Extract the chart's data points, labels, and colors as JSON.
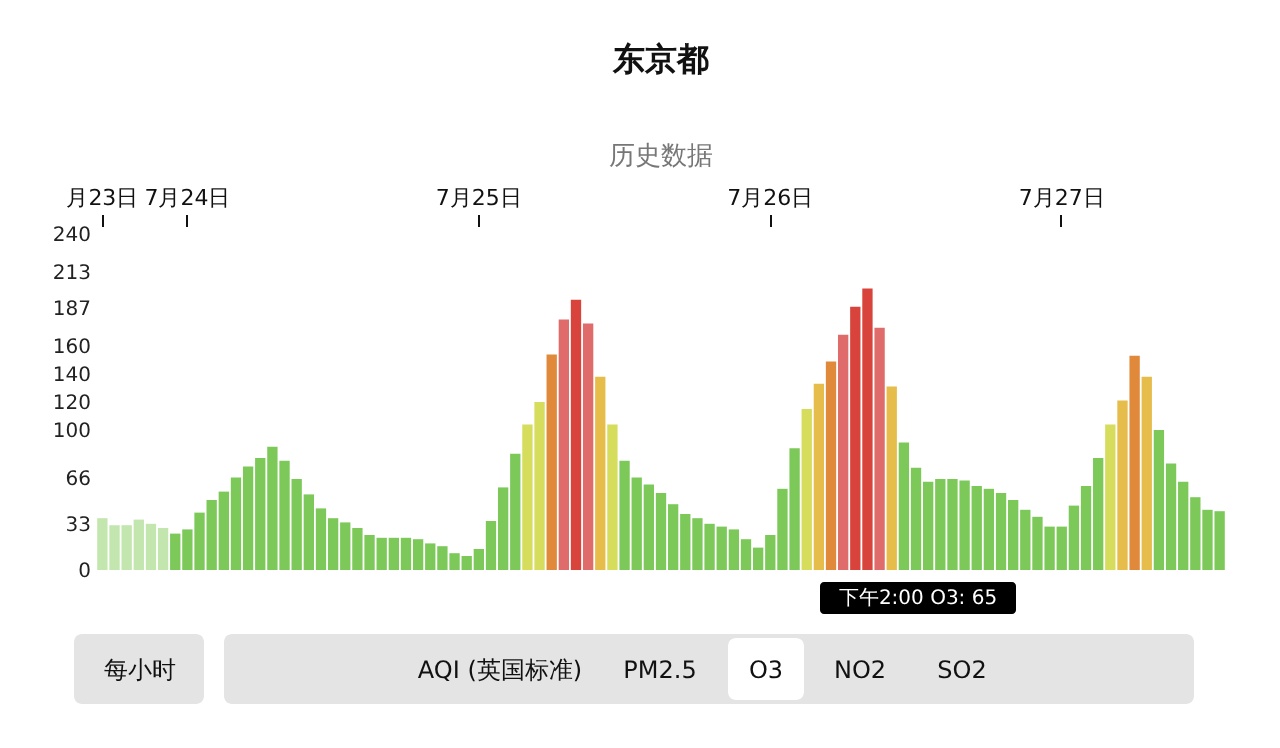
{
  "chart_data": {
    "type": "bar",
    "title": "东京都",
    "subtitle": "历史数据",
    "categories": [
      "月23日",
      null,
      null,
      null,
      null,
      null,
      null,
      "7月24日",
      null,
      null,
      null,
      null,
      null,
      null,
      null,
      null,
      null,
      null,
      null,
      null,
      null,
      null,
      null,
      null,
      null,
      null,
      null,
      null,
      null,
      null,
      null,
      "7月25日",
      null,
      null,
      null,
      null,
      null,
      null,
      null,
      null,
      null,
      null,
      null,
      null,
      null,
      null,
      null,
      null,
      null,
      null,
      null,
      null,
      null,
      null,
      null,
      "7月26日",
      null,
      null,
      null,
      null,
      null,
      null,
      null,
      null,
      null,
      null,
      null,
      null,
      null,
      null,
      null,
      null,
      null,
      null,
      null,
      null,
      null,
      null,
      null,
      "7月27日",
      null,
      null,
      null,
      null,
      null,
      null,
      null,
      null,
      null,
      null,
      null,
      null,
      null
    ],
    "values": [
      37,
      32,
      32,
      36,
      33,
      30,
      26,
      29,
      41,
      50,
      56,
      66,
      74,
      80,
      88,
      78,
      65,
      54,
      44,
      37,
      34,
      30,
      25,
      23,
      23,
      23,
      22,
      19,
      17,
      12,
      10,
      15,
      35,
      59,
      83,
      104,
      120,
      154,
      179,
      193,
      176,
      138,
      104,
      78,
      66,
      61,
      55,
      47,
      40,
      37,
      33,
      31,
      29,
      22,
      16,
      25,
      58,
      87,
      115,
      133,
      149,
      168,
      188,
      201,
      173,
      131,
      91,
      73,
      63,
      65,
      65,
      64,
      60,
      58,
      55,
      50,
      43,
      38,
      31,
      31,
      46,
      60,
      80,
      104,
      121,
      153,
      138,
      100,
      76,
      63,
      52,
      43,
      42
    ],
    "colors": [
      "#c3e6ae",
      "#c3e6ae",
      "#c3e6ae",
      "#c3e6ae",
      "#c3e6ae",
      "#c3e6ae",
      "#7cc95a",
      "#7cc95a",
      "#7cc95a",
      "#7cc95a",
      "#7cc95a",
      "#7cc95a",
      "#7cc95a",
      "#7cc95a",
      "#7cc95a",
      "#7cc95a",
      "#7cc95a",
      "#7cc95a",
      "#7cc95a",
      "#7cc95a",
      "#7cc95a",
      "#7cc95a",
      "#7cc95a",
      "#7cc95a",
      "#7cc95a",
      "#7cc95a",
      "#7cc95a",
      "#7cc95a",
      "#7cc95a",
      "#7cc95a",
      "#7cc95a",
      "#7cc95a",
      "#7cc95a",
      "#7cc95a",
      "#7cc95a",
      "#d6dc5c",
      "#d6dc5c",
      "#e0893a",
      "#e06b6b",
      "#d8443c",
      "#e06b6b",
      "#e6bd4a",
      "#d6dc5c",
      "#7cc95a",
      "#7cc95a",
      "#7cc95a",
      "#7cc95a",
      "#7cc95a",
      "#7cc95a",
      "#7cc95a",
      "#7cc95a",
      "#7cc95a",
      "#7cc95a",
      "#7cc95a",
      "#7cc95a",
      "#7cc95a",
      "#7cc95a",
      "#7cc95a",
      "#d6dc5c",
      "#e6bd4a",
      "#e0893a",
      "#e06b6b",
      "#d8443c",
      "#d8443c",
      "#e06b6b",
      "#e6bd4a",
      "#7cc95a",
      "#7cc95a",
      "#7cc95a",
      "#7cc95a",
      "#7cc95a",
      "#7cc95a",
      "#7cc95a",
      "#7cc95a",
      "#7cc95a",
      "#7cc95a",
      "#7cc95a",
      "#7cc95a",
      "#7cc95a",
      "#7cc95a",
      "#7cc95a",
      "#7cc95a",
      "#7cc95a",
      "#d6dc5c",
      "#e6bd4a",
      "#e0893a",
      "#e6bd4a",
      "#7cc95a",
      "#7cc95a",
      "#7cc95a",
      "#7cc95a",
      "#7cc95a",
      "#7cc95a"
    ],
    "ylim": [
      0,
      240
    ],
    "yticks": [
      0,
      33,
      66,
      100,
      120,
      140,
      160,
      187,
      213,
      240
    ],
    "grid": false,
    "legend": false,
    "annotations": [
      "下午2:00 O3: 65",
      "每小时",
      "AQI (英国标准)",
      "PM2.5",
      "O3",
      "NO2",
      "SO2"
    ]
  }
}
